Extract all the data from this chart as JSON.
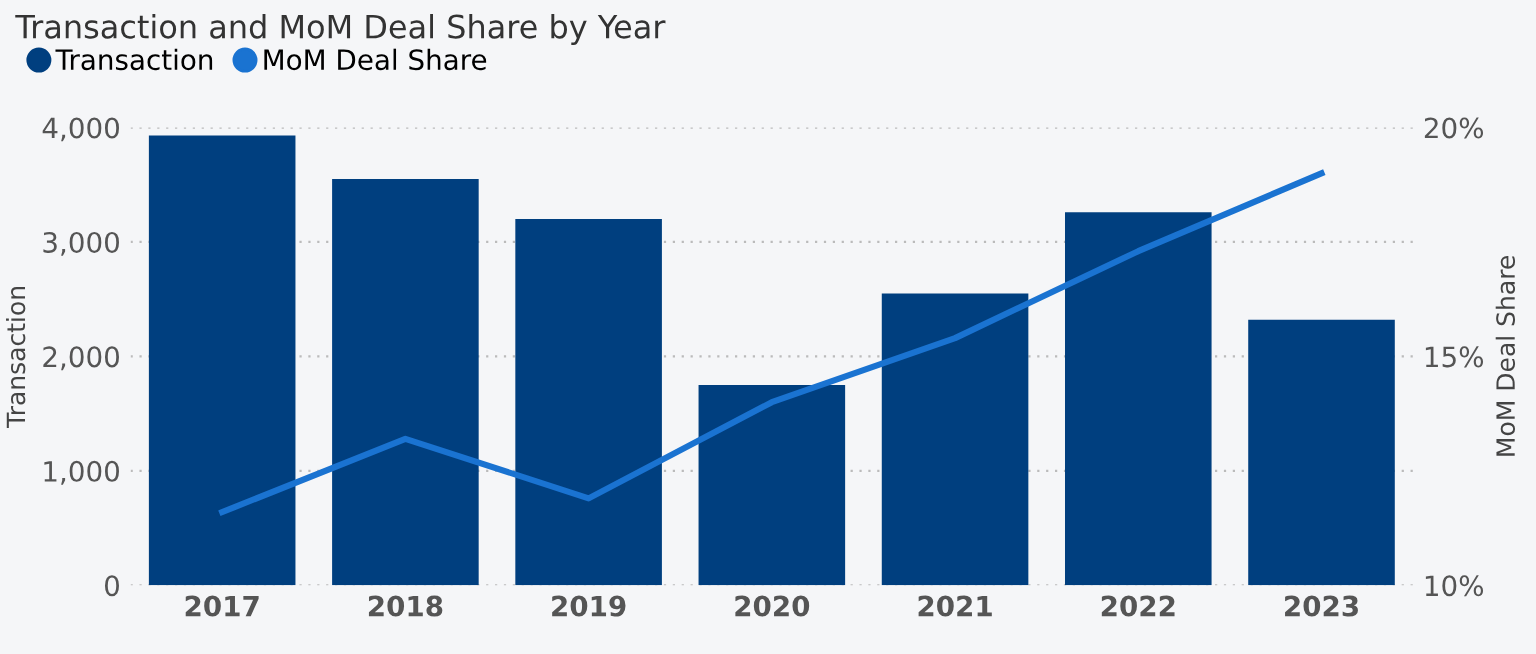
{
  "chart_data": {
    "type": "bar",
    "title": "Transaction and MoM Deal Share by Year",
    "categories": [
      "2017",
      "2018",
      "2019",
      "2020",
      "2021",
      "2022",
      "2023"
    ],
    "series": [
      {
        "name": "Transaction",
        "color": "#003f7f",
        "values": [
          3930,
          3550,
          3200,
          1750,
          2550,
          3260,
          2320
        ]
      },
      {
        "name": "MoM Deal Share",
        "color": "#1a73d1",
        "type": "line",
        "axis": "y2",
        "values": [
          11.6,
          13.2,
          11.9,
          14.0,
          15.4,
          17.3,
          19.0
        ]
      }
    ],
    "xlabel": null,
    "ylabel": "Transaction",
    "y2label": "MoM Deal Share",
    "ylim": [
      0,
      4000
    ],
    "yticks": [
      0,
      {
        "value": 1000,
        "label": "1,000"
      },
      {
        "value": 2000,
        "label": "2,000"
      },
      {
        "value": 3000,
        "label": "3,000"
      },
      {
        "value": 4000,
        "label": "4,000"
      }
    ],
    "y2lim": [
      10,
      20
    ],
    "y2ticks": [
      {
        "value": 10,
        "label": "10%"
      },
      {
        "value": 15,
        "label": "15%"
      },
      {
        "value": 20,
        "label": "20%"
      }
    ],
    "grid": "y",
    "legend": "top left"
  }
}
